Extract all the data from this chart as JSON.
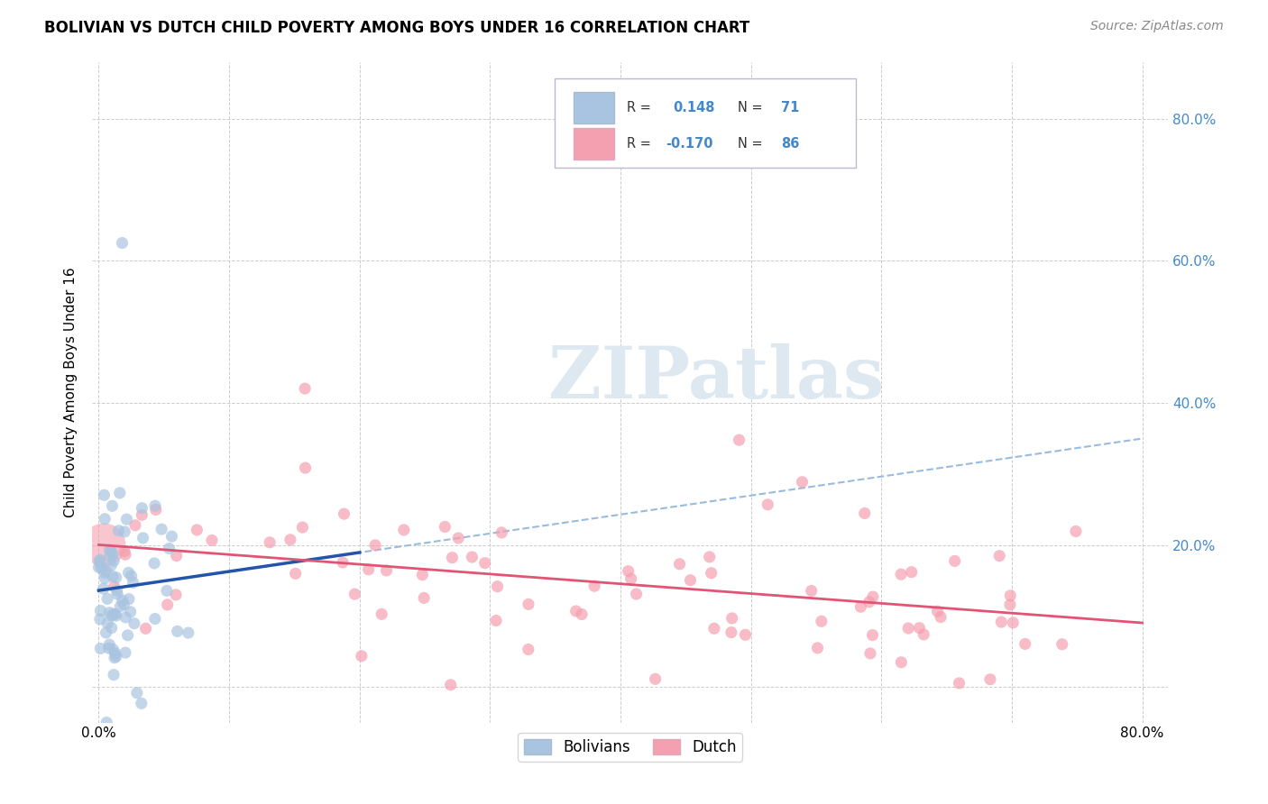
{
  "title": "BOLIVIAN VS DUTCH CHILD POVERTY AMONG BOYS UNDER 16 CORRELATION CHART",
  "source": "Source: ZipAtlas.com",
  "ylabel": "Child Poverty Among Boys Under 16",
  "xlim": [
    -0.005,
    0.82
  ],
  "ylim": [
    -0.05,
    0.88
  ],
  "bolivians_color": "#a8c4e0",
  "dutch_color": "#f4a0b0",
  "bolivians_trend_color": "#2255aa",
  "dutch_trend_color": "#e05575",
  "bolivians_line_style": "solid",
  "dutch_line_style": "solid",
  "dashed_line_color": "#99bbdd",
  "watermark_text": "ZIPatlas",
  "watermark_color": "#dde8f0",
  "legend_label1": "Bolivians",
  "legend_label2": "Dutch",
  "R1": 0.148,
  "N1": 71,
  "R2": -0.17,
  "N2": 86,
  "title_fontsize": 12,
  "source_fontsize": 10,
  "axis_label_fontsize": 11,
  "tick_fontsize": 11,
  "right_tick_color": "#4488cc"
}
